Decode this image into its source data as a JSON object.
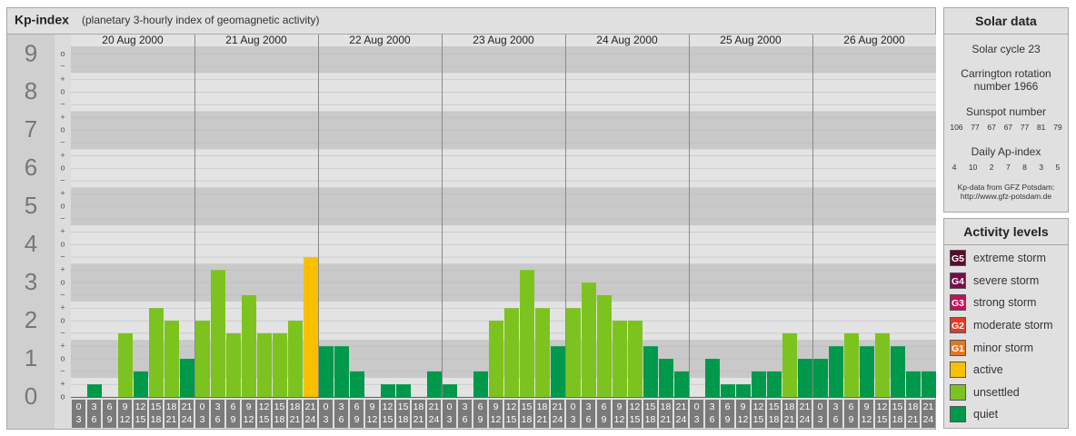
{
  "chart_data": {
    "type": "bar",
    "title": "Kp-index",
    "subtitle": "(planetary 3-hourly index of geomagnetic activity)",
    "slots": [
      [
        "0",
        "3"
      ],
      [
        "3",
        "6"
      ],
      [
        "6",
        "9"
      ],
      [
        "9",
        "12"
      ],
      [
        "12",
        "15"
      ],
      [
        "15",
        "18"
      ],
      [
        "18",
        "21"
      ],
      [
        "21",
        "24"
      ]
    ],
    "days": [
      {
        "date": "20 Aug 2000",
        "values": [
          0,
          0.33,
          0,
          1.67,
          0.67,
          2.33,
          2,
          1
        ],
        "colors": [
          "#00984a",
          "#00984a",
          "#00984a",
          "#7dc31f",
          "#00984a",
          "#7dc31f",
          "#7dc31f",
          "#00984a"
        ]
      },
      {
        "date": "21 Aug 2000",
        "values": [
          2,
          3.33,
          1.67,
          2.67,
          1.67,
          1.67,
          2,
          3.67
        ],
        "colors": [
          "#7dc31f",
          "#7dc31f",
          "#7dc31f",
          "#7dc31f",
          "#7dc31f",
          "#7dc31f",
          "#7dc31f",
          "#f8c000"
        ]
      },
      {
        "date": "22 Aug 2000",
        "values": [
          1.33,
          1.33,
          0.67,
          0,
          0.33,
          0.33,
          0,
          0.67
        ],
        "colors": [
          "#00984a",
          "#00984a",
          "#00984a",
          "#00984a",
          "#00984a",
          "#00984a",
          "#00984a",
          "#00984a"
        ]
      },
      {
        "date": "23 Aug 2000",
        "values": [
          0.33,
          0,
          0.67,
          2,
          2.33,
          3.33,
          2.33,
          1.33
        ],
        "colors": [
          "#00984a",
          "#00984a",
          "#00984a",
          "#7dc31f",
          "#7dc31f",
          "#7dc31f",
          "#7dc31f",
          "#00984a"
        ]
      },
      {
        "date": "24 Aug 2000",
        "values": [
          2.33,
          3,
          2.67,
          2,
          2,
          1.33,
          1,
          0.67
        ],
        "colors": [
          "#7dc31f",
          "#7dc31f",
          "#7dc31f",
          "#7dc31f",
          "#7dc31f",
          "#00984a",
          "#00984a",
          "#00984a"
        ]
      },
      {
        "date": "25 Aug 2000",
        "values": [
          0,
          1,
          0.33,
          0.33,
          0.67,
          0.67,
          1.67,
          1
        ],
        "colors": [
          "#00984a",
          "#00984a",
          "#00984a",
          "#00984a",
          "#00984a",
          "#00984a",
          "#7dc31f",
          "#00984a"
        ]
      },
      {
        "date": "26 Aug 2000",
        "values": [
          1,
          1.33,
          1.67,
          1.33,
          1.67,
          1.33,
          0.67,
          0.67
        ],
        "colors": [
          "#00984a",
          "#00984a",
          "#7dc31f",
          "#00984a",
          "#7dc31f",
          "#00984a",
          "#00984a",
          "#00984a"
        ]
      }
    ],
    "ylim": [
      0,
      9.2
    ],
    "yticks": [
      0,
      1,
      2,
      3,
      4,
      5,
      6,
      7,
      8,
      9
    ],
    "minor_ticks": [
      {
        "value": 0,
        "label": "o"
      },
      {
        "value": 0.33,
        "label": "+"
      },
      {
        "value": 0.67,
        "label": "−"
      },
      {
        "value": 1,
        "label": "o"
      },
      {
        "value": 1.33,
        "label": "+"
      },
      {
        "value": 1.67,
        "label": "−"
      },
      {
        "value": 2,
        "label": "o"
      },
      {
        "value": 2.33,
        "label": "+"
      },
      {
        "value": 2.67,
        "label": "−"
      },
      {
        "value": 3,
        "label": "o"
      },
      {
        "value": 3.33,
        "label": "+"
      },
      {
        "value": 3.67,
        "label": "−"
      },
      {
        "value": 4,
        "label": "o"
      },
      {
        "value": 4.33,
        "label": "+"
      },
      {
        "value": 4.67,
        "label": "−"
      },
      {
        "value": 5,
        "label": "o"
      },
      {
        "value": 5.33,
        "label": "+"
      },
      {
        "value": 5.67,
        "label": "−"
      },
      {
        "value": 6,
        "label": "o"
      },
      {
        "value": 6.33,
        "label": "+"
      },
      {
        "value": 6.67,
        "label": "−"
      },
      {
        "value": 7,
        "label": "o"
      },
      {
        "value": 7.33,
        "label": "+"
      },
      {
        "value": 7.67,
        "label": "−"
      },
      {
        "value": 8,
        "label": "o"
      },
      {
        "value": 8.33,
        "label": "+"
      },
      {
        "value": 8.67,
        "label": "−"
      },
      {
        "value": 9,
        "label": "o"
      }
    ]
  },
  "solar_data": {
    "title": "Solar data",
    "cycle": "Solar cycle 23",
    "carrington": "Carrington rotation number 1966",
    "sunspot_title": "Sunspot number",
    "sunspot": [
      "106",
      "77",
      "67",
      "67",
      "77",
      "81",
      "79"
    ],
    "ap_title": "Daily Ap-index",
    "ap": [
      "4",
      "10",
      "2",
      "7",
      "8",
      "3",
      "5"
    ],
    "source": "Kp-data from GFZ Potsdam:",
    "url": "http://www.gfz-potsdam.de"
  },
  "activity_levels": {
    "title": "Activity levels",
    "levels": [
      {
        "code": "G5",
        "name": "extreme storm",
        "color": "#5a0a2e"
      },
      {
        "code": "G4",
        "name": "severe storm",
        "color": "#7a0c4c"
      },
      {
        "code": "G3",
        "name": "strong storm",
        "color": "#c0145a"
      },
      {
        "code": "G2",
        "name": "moderate storm",
        "color": "#e03c28"
      },
      {
        "code": "G1",
        "name": "minor storm",
        "color": "#e07820"
      },
      {
        "code": "",
        "name": "active",
        "color": "#f8c000"
      },
      {
        "code": "",
        "name": "unsettled",
        "color": "#7dc31f"
      },
      {
        "code": "",
        "name": "quiet",
        "color": "#00984a"
      }
    ]
  }
}
